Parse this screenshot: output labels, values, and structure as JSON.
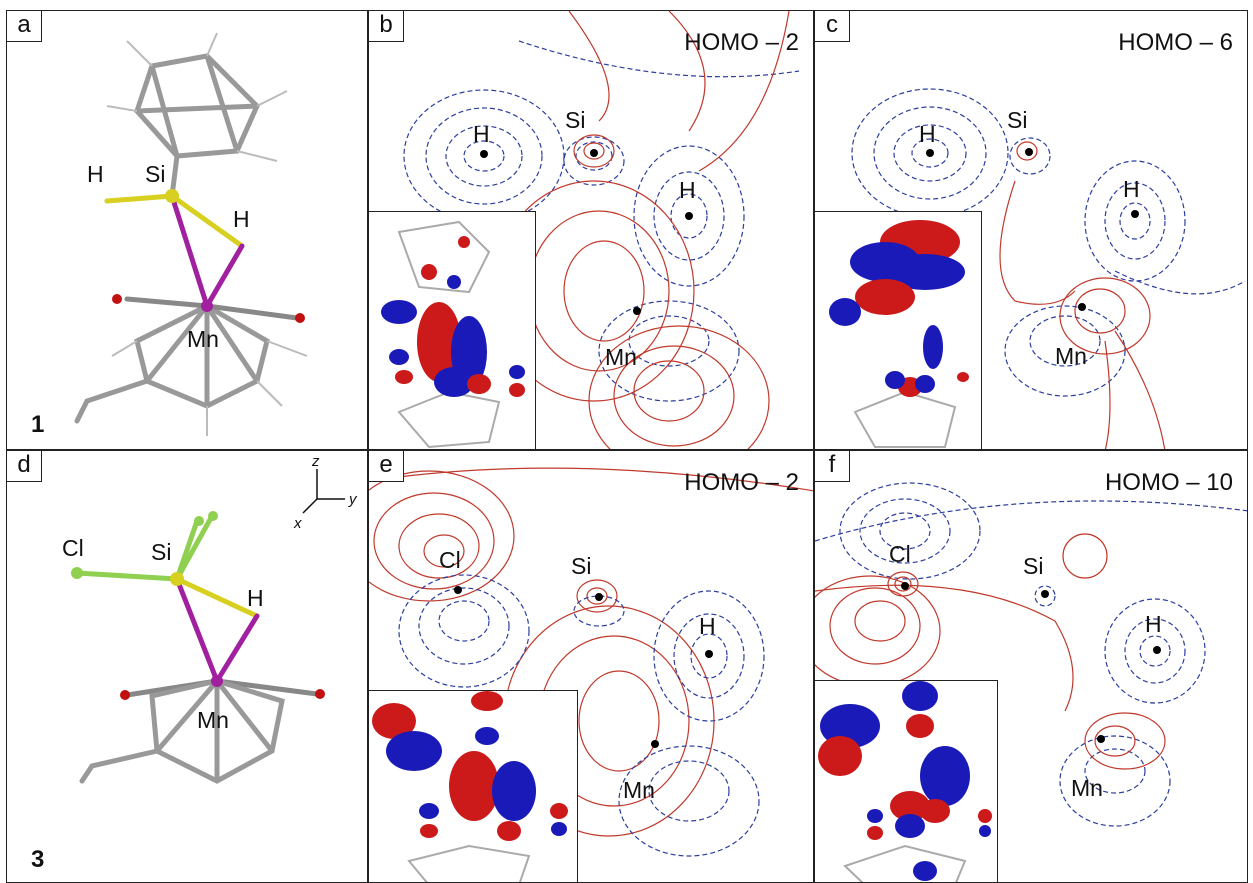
{
  "panels": {
    "a": {
      "label": "a",
      "compound": "1",
      "atoms": {
        "h1": "H",
        "si": "Si",
        "h2": "H",
        "mn": "Mn"
      }
    },
    "b": {
      "label": "b",
      "orbital": "HOMO – 2",
      "atoms": {
        "h1": "H",
        "si": "Si",
        "h2": "H",
        "mn": "Mn"
      }
    },
    "c": {
      "label": "c",
      "orbital": "HOMO – 6",
      "atoms": {
        "h1": "H",
        "si": "Si",
        "h2": "H",
        "mn": "Mn"
      }
    },
    "d": {
      "label": "d",
      "compound": "3",
      "atoms": {
        "cl": "Cl",
        "si": "Si",
        "h": "H",
        "mn": "Mn"
      },
      "axes": {
        "z": "z",
        "y": "y",
        "x": "x"
      }
    },
    "e": {
      "label": "e",
      "orbital": "HOMO – 2",
      "atoms": {
        "cl": "Cl",
        "si": "Si",
        "h": "H",
        "mn": "Mn"
      }
    },
    "f": {
      "label": "f",
      "orbital": "HOMO – 10",
      "atoms": {
        "cl": "Cl",
        "si": "Si",
        "h": "H",
        "mn": "Mn"
      }
    }
  },
  "colors": {
    "positive": "#c0392b",
    "negative": "#2c3e9e",
    "silicon": "#d8d020",
    "manganese": "#a020a0",
    "chlorine": "#8fd050",
    "oxygen": "#c01010",
    "carbon": "#888888",
    "lobe_red": "#cc1a1a",
    "lobe_blue": "#1a1ab8"
  }
}
